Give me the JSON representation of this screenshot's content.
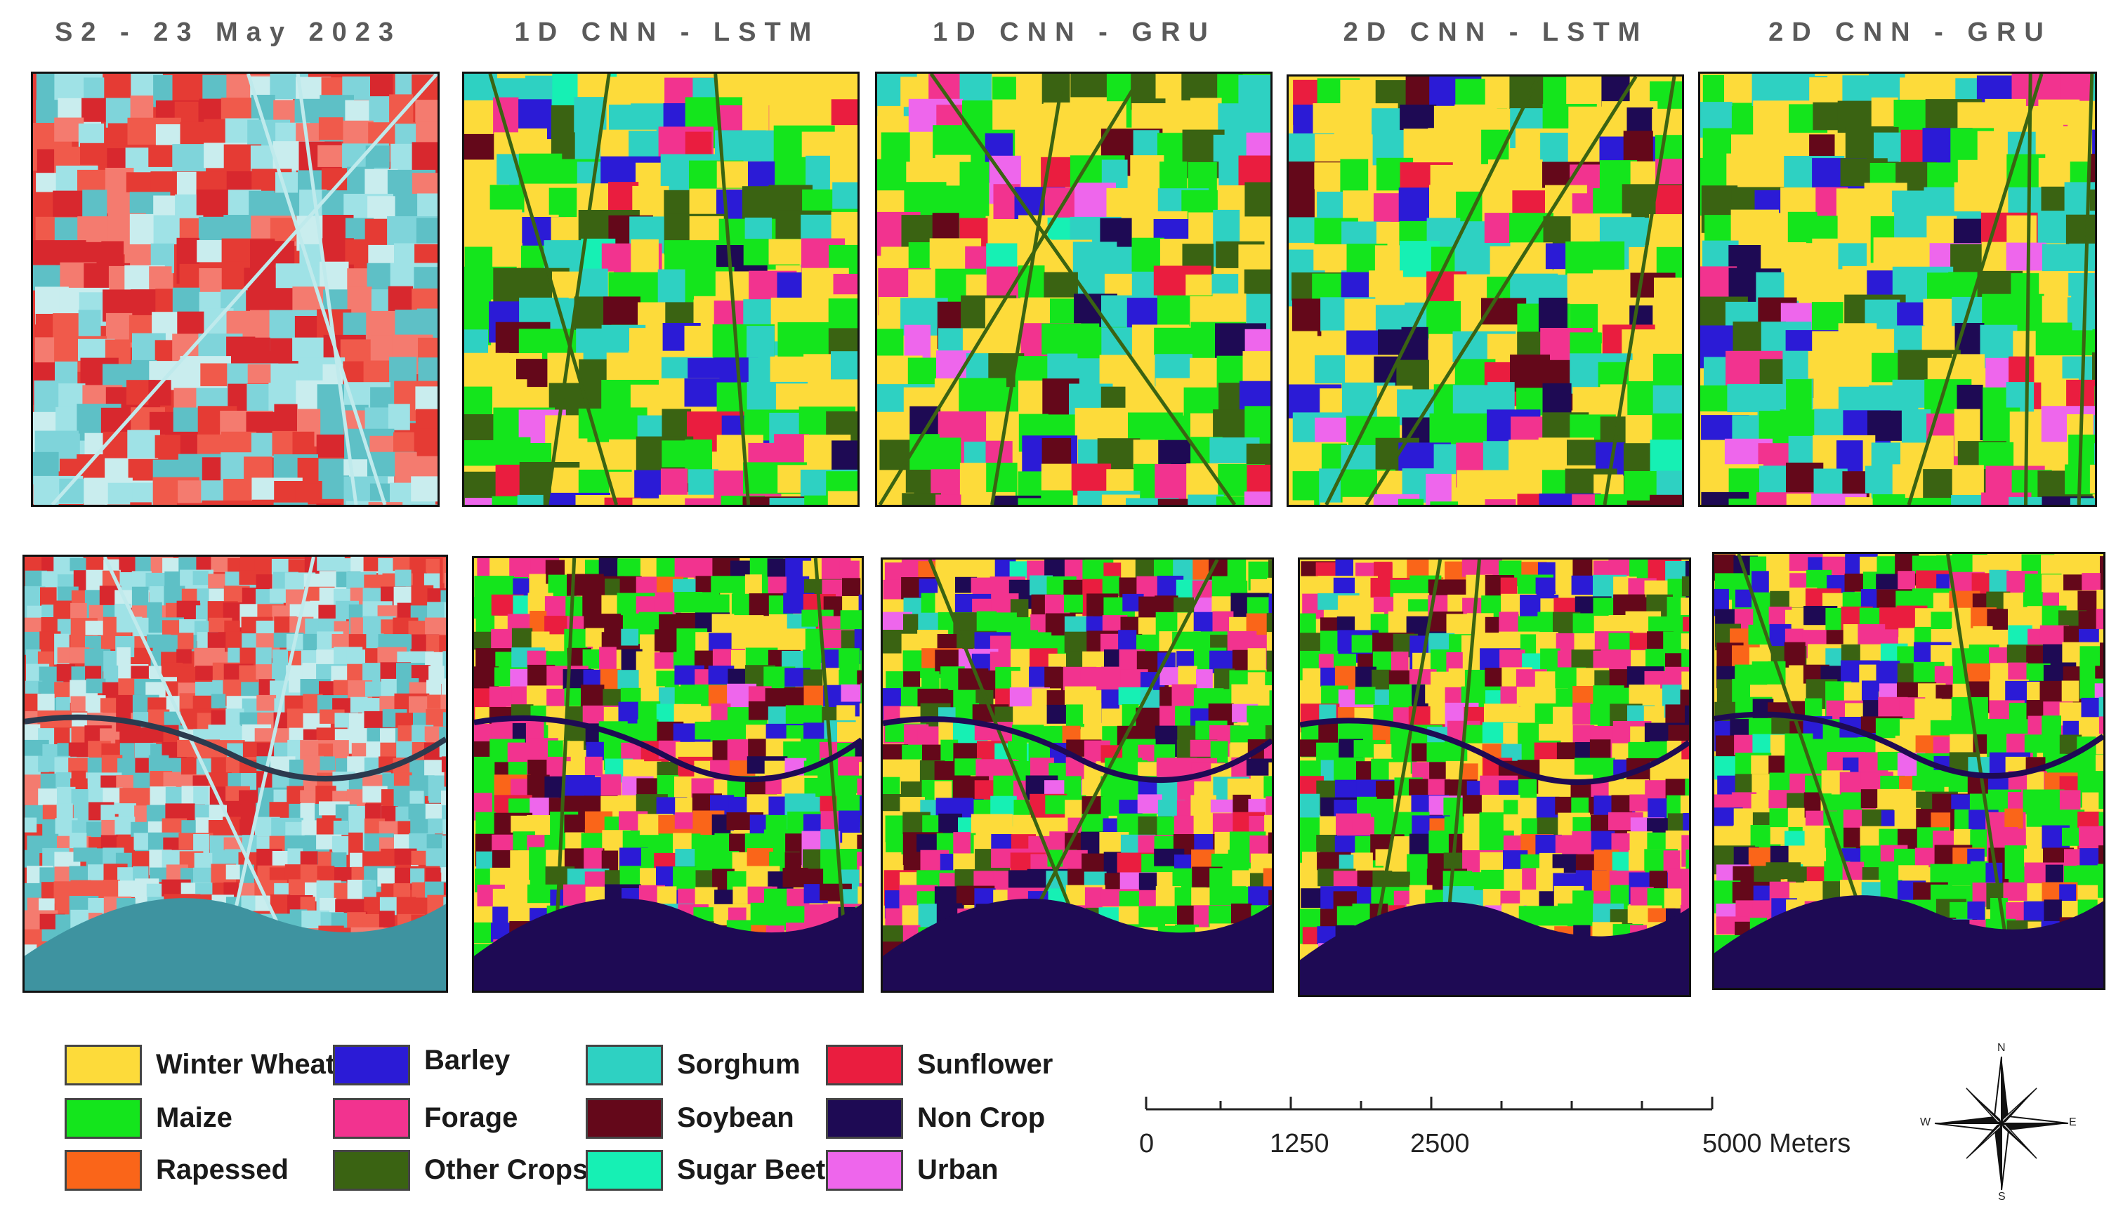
{
  "columns": [
    {
      "title": "S2 - 23 May 2023",
      "kind": "satellite"
    },
    {
      "title": "1D CNN - LSTM",
      "kind": "classified"
    },
    {
      "title": "1D CNN - GRU",
      "kind": "classified"
    },
    {
      "title": "2D CNN - LSTM",
      "kind": "classified"
    },
    {
      "title": "2D CNN - GRU",
      "kind": "classified"
    }
  ],
  "legend": [
    {
      "label": "Winter Wheat",
      "color": "#FDDB3A"
    },
    {
      "label": "Barley",
      "color": "#2B1BD6"
    },
    {
      "label": "Sorghum",
      "color": "#2ED1C2"
    },
    {
      "label": "Sunflower",
      "color": "#EA1D3F"
    },
    {
      "label": "Maize",
      "color": "#14E51C"
    },
    {
      "label": "Forage",
      "color": "#F2338F"
    },
    {
      "label": "Soybean",
      "color": "#64081A"
    },
    {
      "label": "Non Crop",
      "color": "#1E0A54"
    },
    {
      "label": "Rapessed",
      "color": "#FA6519"
    },
    {
      "label": "Other Crops",
      "color": "#3A6312"
    },
    {
      "label": "Sugar Beet",
      "color": "#16F0B4"
    },
    {
      "label": "Urban",
      "color": "#EE66EC"
    }
  ],
  "scalebar": {
    "ticks": [
      "0",
      "1250",
      "2500",
      "5000 Meters"
    ]
  },
  "north_arrow": {
    "N": "N",
    "S": "S",
    "E": "E",
    "W": "W"
  },
  "satellite_colors": [
    "#E53B34",
    "#F05A4B",
    "#D8282E",
    "#7FD4DA",
    "#9FE2E6",
    "#C9EDEE",
    "#5EC0C6",
    "#F47B6F"
  ]
}
